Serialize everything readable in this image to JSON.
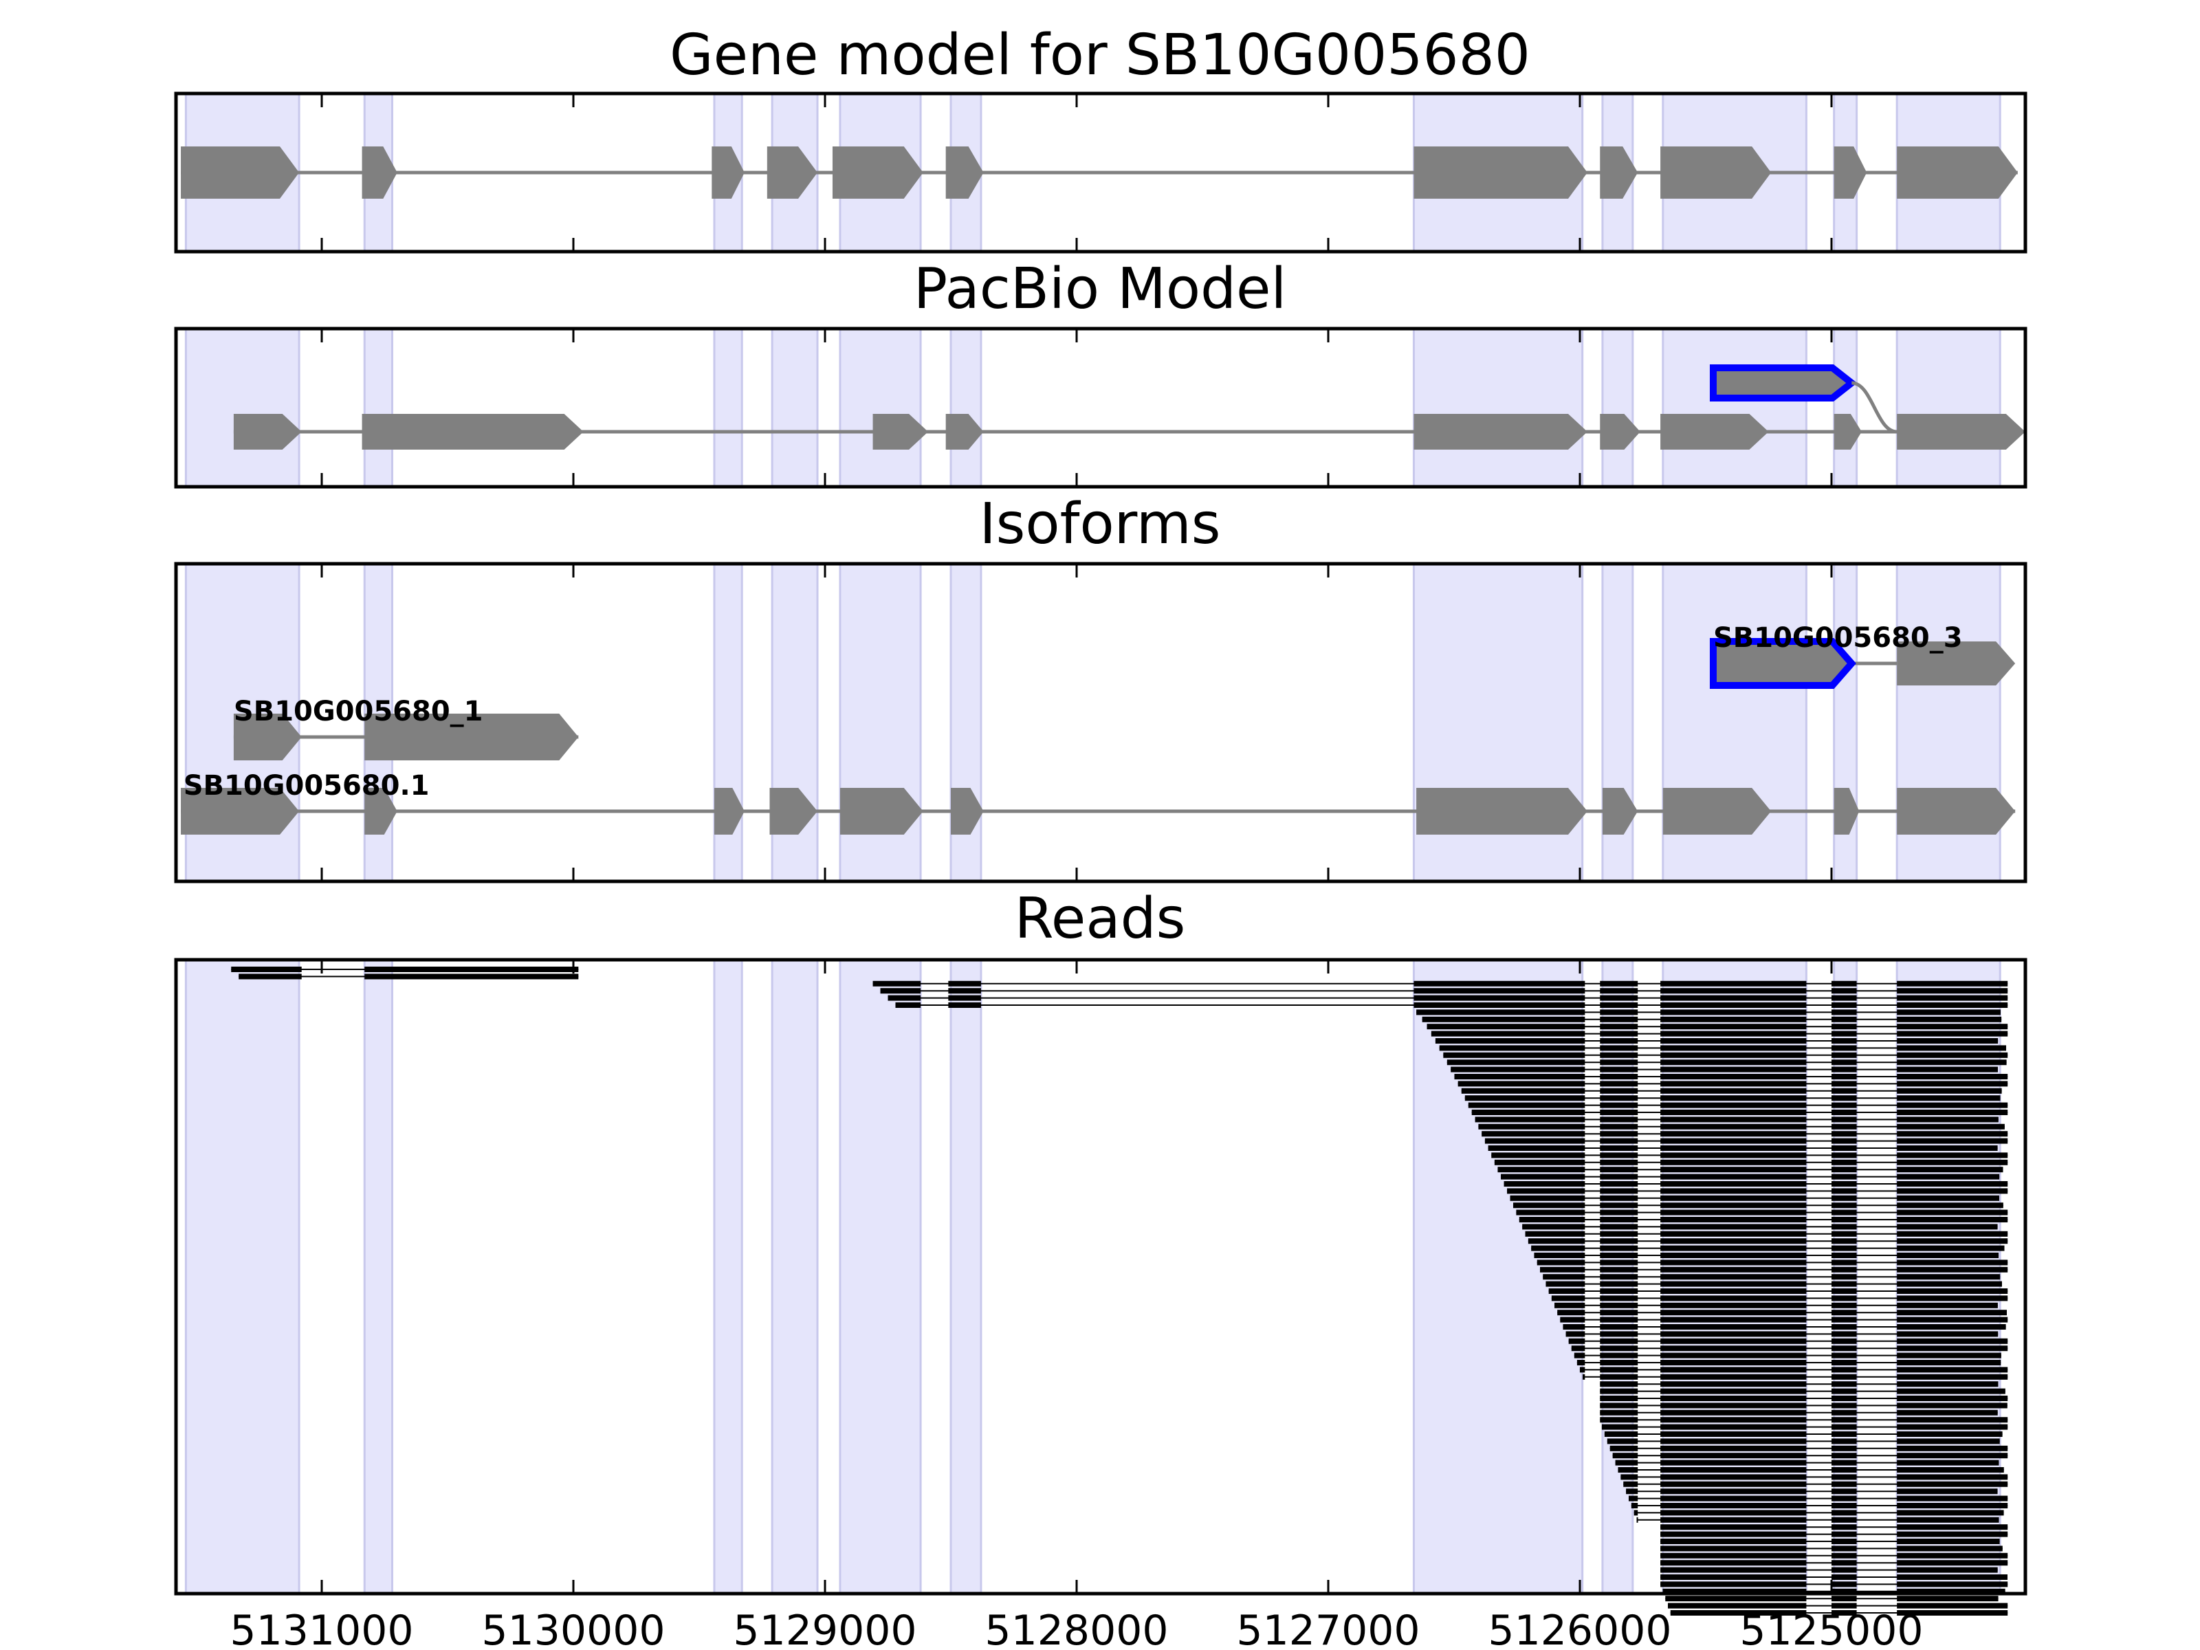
{
  "panels": [
    {
      "id": "gene",
      "title": "Gene model for SB10G005680"
    },
    {
      "id": "pacbio",
      "title": "PacBio Model"
    },
    {
      "id": "iso",
      "title": "Isoforms"
    },
    {
      "id": "reads",
      "title": "Reads"
    }
  ],
  "axis": {
    "ticks": [
      5131000,
      5130000,
      5129000,
      5128000,
      5127000,
      5126000,
      5125000
    ],
    "tick_labels": [
      "5131000",
      "5130000",
      "5129000",
      "5128000",
      "5127000",
      "5126000",
      "5125000"
    ]
  },
  "highlight_color": "#e5e5fb",
  "feature_color": "#808080",
  "selected_color": "#0000ff",
  "read_color": "#000000",
  "exon_regions": [
    [
      5131540,
      5131090
    ],
    [
      5130830,
      5130720
    ],
    [
      5129440,
      5129330
    ],
    [
      5129210,
      5129030
    ],
    [
      5128940,
      5128620
    ],
    [
      5128500,
      5128380
    ],
    [
      5126660,
      5125990
    ],
    [
      5125910,
      5125790
    ],
    [
      5125670,
      5125100
    ],
    [
      5124990,
      5124900
    ],
    [
      5124740,
      5124330
    ]
  ],
  "gene_model": {
    "start": 5131560,
    "end": 5124320,
    "exons": [
      [
        5131560,
        5131090
      ],
      [
        5130840,
        5130700
      ],
      [
        5129450,
        5129320
      ],
      [
        5129230,
        5129030
      ],
      [
        5128970,
        5128610
      ],
      [
        5128520,
        5128370
      ],
      [
        5126660,
        5125970
      ],
      [
        5125920,
        5125770
      ],
      [
        5125680,
        5125240
      ],
      [
        5124990,
        5124860
      ],
      [
        5124740,
        5124260
      ]
    ]
  },
  "pacbio_model": {
    "main": {
      "start": 5131350,
      "end": 5124230,
      "exons": [
        [
          5131350,
          5131080
        ],
        [
          5130840,
          5129960
        ],
        [
          5128810,
          5128590
        ],
        [
          5128520,
          5128370
        ],
        [
          5126660,
          5125970
        ],
        [
          5125920,
          5125760
        ],
        [
          5125680,
          5125250
        ],
        [
          5124990,
          5124880
        ],
        [
          5124740,
          5124230
        ]
      ]
    },
    "selected": {
      "start": 5125470,
      "end": 5124740,
      "exons": [
        [
          5125470,
          5124920
        ]
      ]
    }
  },
  "isoforms": [
    {
      "label": "SB10G005680.1",
      "label_pos": 5131550,
      "row": 3,
      "exons": [
        [
          5131560,
          5131090
        ],
        [
          5130830,
          5130700
        ],
        [
          5129440,
          5129320
        ],
        [
          5129220,
          5129030
        ],
        [
          5128940,
          5128610
        ],
        [
          5128500,
          5128370
        ],
        [
          5126650,
          5125970
        ],
        [
          5125910,
          5125770
        ],
        [
          5125670,
          5125240
        ],
        [
          5124990,
          5124890
        ],
        [
          5124740,
          5124270
        ]
      ]
    },
    {
      "label": "SB10G005680_1",
      "label_pos": 5131350,
      "row": 2,
      "exons": [
        [
          5131350,
          5131080
        ],
        [
          5130830,
          5129980
        ]
      ]
    },
    {
      "label": "SB10G005680_3",
      "label_pos": 5125470,
      "row": 1,
      "selected": true,
      "exons": [
        [
          5125470,
          5124920
        ],
        [
          5124740,
          5124270
        ]
      ]
    }
  ],
  "read_groups": [
    {
      "rows": [
        0,
        1
      ],
      "exons": [
        [
          5131360,
          5131080
        ],
        [
          5130830,
          5129980
        ]
      ]
    },
    {
      "rows": [
        2,
        3,
        4,
        5
      ],
      "exons": [
        [
          5128810,
          5128620
        ],
        [
          5128510,
          5128380
        ],
        [
          5126660,
          5125980
        ],
        [
          5125920,
          5125770
        ],
        [
          5125680,
          5125100
        ],
        [
          5125000,
          5124900
        ],
        [
          5124740,
          5124300
        ]
      ]
    },
    {
      "rows_from": 6,
      "rows_to": 90,
      "exons": [
        [
          5126650,
          5125980
        ],
        [
          5125920,
          5125770
        ],
        [
          5125680,
          5125100
        ],
        [
          5125000,
          5124900
        ],
        [
          5124740,
          5124300
        ]
      ]
    }
  ]
}
